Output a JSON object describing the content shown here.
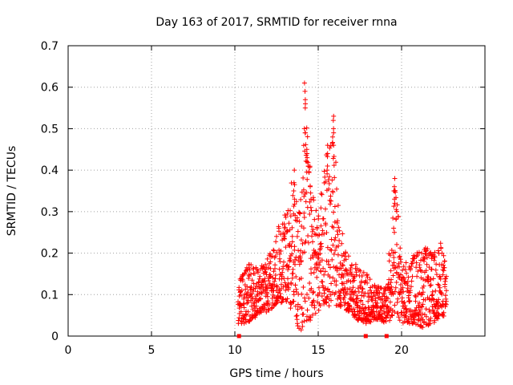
{
  "chart_data": {
    "type": "scatter",
    "title": "Day 163 of 2017, SRMTID for receiver rnna",
    "xlabel": "GPS time / hours",
    "ylabel": "SRMTID / TECUs",
    "xlim": [
      0,
      25
    ],
    "ylim": [
      0,
      0.7
    ],
    "x_ticks": [
      "0",
      "5",
      "10",
      "15",
      "20"
    ],
    "x_tick_values": [
      0,
      5,
      10,
      15,
      20
    ],
    "y_ticks": [
      "0",
      "0.1",
      "0.2",
      "0.3",
      "0.4",
      "0.5",
      "0.6",
      "0.7"
    ],
    "y_tick_values": [
      0,
      0.1,
      0.2,
      0.3,
      0.4,
      0.5,
      0.6,
      0.7
    ],
    "grid": true,
    "marker": "+",
    "series_color": "#ff0000",
    "axis_markers_x": [
      10.25,
      17.85,
      19.1
    ],
    "envelope": [
      {
        "x": 10.2,
        "lo": 0.03,
        "hi": 0.13
      },
      {
        "x": 10.8,
        "lo": 0.03,
        "hi": 0.19
      },
      {
        "x": 11.4,
        "lo": 0.05,
        "hi": 0.16
      },
      {
        "x": 12.0,
        "lo": 0.06,
        "hi": 0.19
      },
      {
        "x": 12.6,
        "lo": 0.08,
        "hi": 0.27
      },
      {
        "x": 13.1,
        "lo": 0.08,
        "hi": 0.3
      },
      {
        "x": 13.5,
        "lo": 0.05,
        "hi": 0.4
      },
      {
        "x": 13.9,
        "lo": 0.01,
        "hi": 0.3
      },
      {
        "x": 14.2,
        "lo": 0.03,
        "hi": 0.6
      },
      {
        "x": 14.6,
        "lo": 0.04,
        "hi": 0.35
      },
      {
        "x": 15.0,
        "lo": 0.06,
        "hi": 0.3
      },
      {
        "x": 15.4,
        "lo": 0.08,
        "hi": 0.42
      },
      {
        "x": 15.9,
        "lo": 0.06,
        "hi": 0.53
      },
      {
        "x": 16.3,
        "lo": 0.07,
        "hi": 0.28
      },
      {
        "x": 16.8,
        "lo": 0.06,
        "hi": 0.2
      },
      {
        "x": 17.3,
        "lo": 0.04,
        "hi": 0.17
      },
      {
        "x": 17.9,
        "lo": 0.03,
        "hi": 0.15
      },
      {
        "x": 18.5,
        "lo": 0.04,
        "hi": 0.12
      },
      {
        "x": 19.1,
        "lo": 0.03,
        "hi": 0.12
      },
      {
        "x": 19.6,
        "lo": 0.05,
        "hi": 0.38
      },
      {
        "x": 20.1,
        "lo": 0.03,
        "hi": 0.17
      },
      {
        "x": 20.7,
        "lo": 0.03,
        "hi": 0.2
      },
      {
        "x": 21.3,
        "lo": 0.02,
        "hi": 0.22
      },
      {
        "x": 21.9,
        "lo": 0.03,
        "hi": 0.2
      },
      {
        "x": 22.4,
        "lo": 0.05,
        "hi": 0.23
      },
      {
        "x": 22.7,
        "lo": 0.04,
        "hi": 0.16
      }
    ],
    "spikes": [
      {
        "x": 14.2,
        "values": [
          0.61,
          0.59,
          0.56,
          0.55,
          0.5,
          0.49,
          0.49
        ]
      },
      {
        "x": 14.35,
        "values": [
          0.45,
          0.44,
          0.43,
          0.42
        ]
      },
      {
        "x": 15.9,
        "values": [
          0.53,
          0.52,
          0.5,
          0.49,
          0.48,
          0.46
        ]
      },
      {
        "x": 15.55,
        "values": [
          0.46,
          0.44,
          0.41,
          0.4
        ]
      },
      {
        "x": 13.55,
        "values": [
          0.4,
          0.37,
          0.35,
          0.33
        ]
      },
      {
        "x": 19.55,
        "values": [
          0.38,
          0.36,
          0.35,
          0.33,
          0.26,
          0.25
        ]
      },
      {
        "x": 14.55,
        "values": [
          0.36,
          0.33,
          0.31
        ]
      }
    ]
  }
}
